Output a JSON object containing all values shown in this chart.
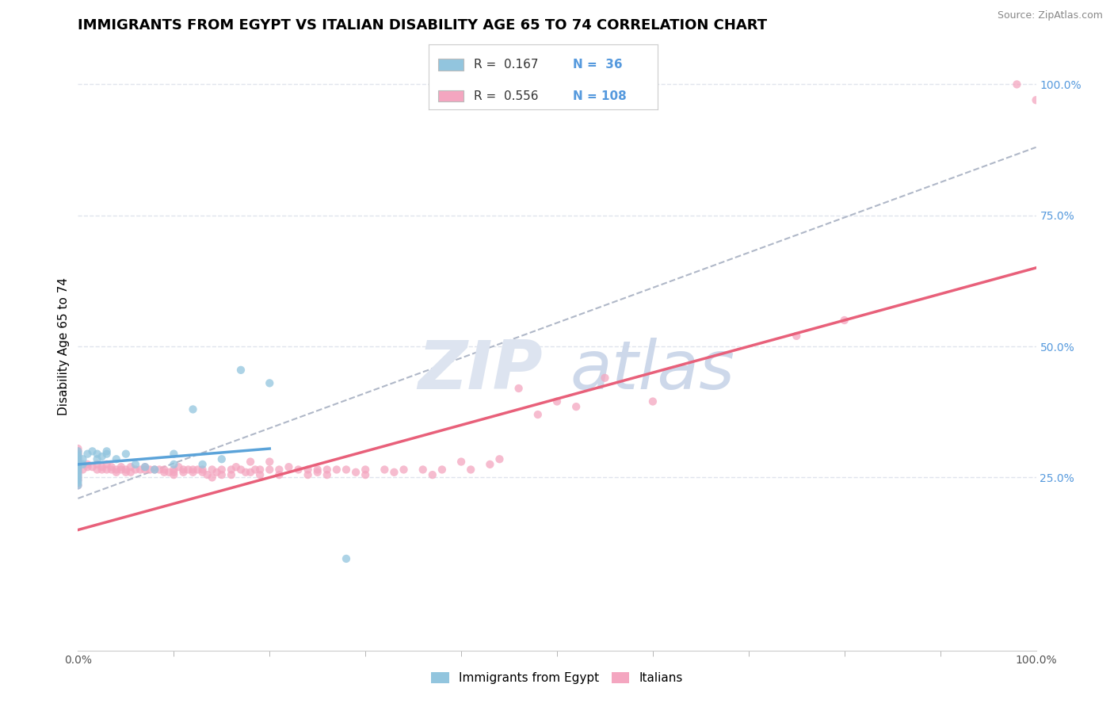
{
  "title": "IMMIGRANTS FROM EGYPT VS ITALIAN DISABILITY AGE 65 TO 74 CORRELATION CHART",
  "source_text": "Source: ZipAtlas.com",
  "ylabel": "Disability Age 65 to 74",
  "xlim": [
    0.0,
    1.0
  ],
  "ylim": [
    -0.08,
    1.08
  ],
  "x_tick_labels": [
    "0.0%",
    "100.0%"
  ],
  "y_tick_labels": [
    "25.0%",
    "50.0%",
    "75.0%",
    "100.0%"
  ],
  "y_tick_positions": [
    0.25,
    0.5,
    0.75,
    1.0
  ],
  "series1_label": "Immigrants from Egypt",
  "series2_label": "Italians",
  "blue_color": "#92c5de",
  "pink_color": "#f4a6c0",
  "blue_line_color": "#5ba3d9",
  "pink_line_color": "#e8607a",
  "dashed_line_color": "#b0b8c8",
  "background_color": "#ffffff",
  "grid_color": "#e0e4ec",
  "title_fontsize": 13,
  "axis_label_fontsize": 11,
  "tick_fontsize": 10,
  "right_tick_color": "#5599dd",
  "blue_scatter": [
    [
      0.0,
      0.265
    ],
    [
      0.0,
      0.255
    ],
    [
      0.0,
      0.275
    ],
    [
      0.0,
      0.28
    ],
    [
      0.0,
      0.29
    ],
    [
      0.0,
      0.3
    ],
    [
      0.0,
      0.295
    ],
    [
      0.0,
      0.285
    ],
    [
      0.0,
      0.27
    ],
    [
      0.0,
      0.26
    ],
    [
      0.0,
      0.245
    ],
    [
      0.0,
      0.235
    ],
    [
      0.0,
      0.25
    ],
    [
      0.0,
      0.24
    ],
    [
      0.005,
      0.285
    ],
    [
      0.005,
      0.275
    ],
    [
      0.01,
      0.295
    ],
    [
      0.015,
      0.3
    ],
    [
      0.02,
      0.295
    ],
    [
      0.02,
      0.285
    ],
    [
      0.025,
      0.29
    ],
    [
      0.03,
      0.3
    ],
    [
      0.03,
      0.295
    ],
    [
      0.04,
      0.285
    ],
    [
      0.05,
      0.295
    ],
    [
      0.06,
      0.275
    ],
    [
      0.07,
      0.27
    ],
    [
      0.08,
      0.265
    ],
    [
      0.1,
      0.275
    ],
    [
      0.1,
      0.295
    ],
    [
      0.12,
      0.38
    ],
    [
      0.13,
      0.275
    ],
    [
      0.15,
      0.285
    ],
    [
      0.17,
      0.455
    ],
    [
      0.2,
      0.43
    ],
    [
      0.28,
      0.095
    ]
  ],
  "pink_scatter": [
    [
      0.0,
      0.265
    ],
    [
      0.0,
      0.255
    ],
    [
      0.0,
      0.27
    ],
    [
      0.0,
      0.275
    ],
    [
      0.0,
      0.28
    ],
    [
      0.0,
      0.285
    ],
    [
      0.0,
      0.29
    ],
    [
      0.0,
      0.295
    ],
    [
      0.0,
      0.3
    ],
    [
      0.0,
      0.305
    ],
    [
      0.0,
      0.245
    ],
    [
      0.0,
      0.235
    ],
    [
      0.0,
      0.25
    ],
    [
      0.0,
      0.26
    ],
    [
      0.005,
      0.265
    ],
    [
      0.01,
      0.27
    ],
    [
      0.01,
      0.275
    ],
    [
      0.015,
      0.27
    ],
    [
      0.02,
      0.265
    ],
    [
      0.02,
      0.275
    ],
    [
      0.025,
      0.265
    ],
    [
      0.025,
      0.27
    ],
    [
      0.03,
      0.265
    ],
    [
      0.03,
      0.275
    ],
    [
      0.035,
      0.27
    ],
    [
      0.035,
      0.265
    ],
    [
      0.04,
      0.265
    ],
    [
      0.04,
      0.26
    ],
    [
      0.045,
      0.265
    ],
    [
      0.045,
      0.27
    ],
    [
      0.05,
      0.26
    ],
    [
      0.05,
      0.265
    ],
    [
      0.055,
      0.27
    ],
    [
      0.055,
      0.26
    ],
    [
      0.06,
      0.265
    ],
    [
      0.065,
      0.265
    ],
    [
      0.07,
      0.265
    ],
    [
      0.07,
      0.27
    ],
    [
      0.075,
      0.265
    ],
    [
      0.08,
      0.265
    ],
    [
      0.085,
      0.265
    ],
    [
      0.09,
      0.265
    ],
    [
      0.09,
      0.26
    ],
    [
      0.095,
      0.26
    ],
    [
      0.1,
      0.265
    ],
    [
      0.1,
      0.26
    ],
    [
      0.1,
      0.255
    ],
    [
      0.105,
      0.27
    ],
    [
      0.11,
      0.265
    ],
    [
      0.11,
      0.26
    ],
    [
      0.115,
      0.265
    ],
    [
      0.12,
      0.265
    ],
    [
      0.12,
      0.26
    ],
    [
      0.125,
      0.265
    ],
    [
      0.13,
      0.265
    ],
    [
      0.13,
      0.26
    ],
    [
      0.135,
      0.255
    ],
    [
      0.14,
      0.265
    ],
    [
      0.14,
      0.25
    ],
    [
      0.145,
      0.26
    ],
    [
      0.15,
      0.265
    ],
    [
      0.15,
      0.255
    ],
    [
      0.16,
      0.265
    ],
    [
      0.16,
      0.255
    ],
    [
      0.165,
      0.27
    ],
    [
      0.17,
      0.265
    ],
    [
      0.175,
      0.26
    ],
    [
      0.18,
      0.28
    ],
    [
      0.18,
      0.26
    ],
    [
      0.185,
      0.265
    ],
    [
      0.19,
      0.255
    ],
    [
      0.19,
      0.265
    ],
    [
      0.2,
      0.265
    ],
    [
      0.2,
      0.28
    ],
    [
      0.21,
      0.265
    ],
    [
      0.21,
      0.255
    ],
    [
      0.22,
      0.27
    ],
    [
      0.23,
      0.265
    ],
    [
      0.24,
      0.265
    ],
    [
      0.24,
      0.255
    ],
    [
      0.25,
      0.265
    ],
    [
      0.25,
      0.26
    ],
    [
      0.26,
      0.265
    ],
    [
      0.26,
      0.255
    ],
    [
      0.27,
      0.265
    ],
    [
      0.28,
      0.265
    ],
    [
      0.29,
      0.26
    ],
    [
      0.3,
      0.265
    ],
    [
      0.3,
      0.255
    ],
    [
      0.32,
      0.265
    ],
    [
      0.33,
      0.26
    ],
    [
      0.34,
      0.265
    ],
    [
      0.36,
      0.265
    ],
    [
      0.37,
      0.255
    ],
    [
      0.38,
      0.265
    ],
    [
      0.4,
      0.28
    ],
    [
      0.41,
      0.265
    ],
    [
      0.43,
      0.275
    ],
    [
      0.44,
      0.285
    ],
    [
      0.46,
      0.42
    ],
    [
      0.48,
      0.37
    ],
    [
      0.5,
      0.395
    ],
    [
      0.52,
      0.385
    ],
    [
      0.55,
      0.44
    ],
    [
      0.6,
      0.395
    ],
    [
      0.75,
      0.52
    ],
    [
      0.8,
      0.55
    ],
    [
      0.98,
      1.0
    ],
    [
      1.0,
      0.97
    ]
  ],
  "blue_line_x": [
    0.0,
    0.2
  ],
  "blue_line_y": [
    0.275,
    0.305
  ],
  "pink_line_x": [
    0.0,
    1.0
  ],
  "pink_line_y": [
    0.15,
    0.65
  ],
  "dash_line_x": [
    0.0,
    1.0
  ],
  "dash_line_y": [
    0.21,
    0.88
  ]
}
